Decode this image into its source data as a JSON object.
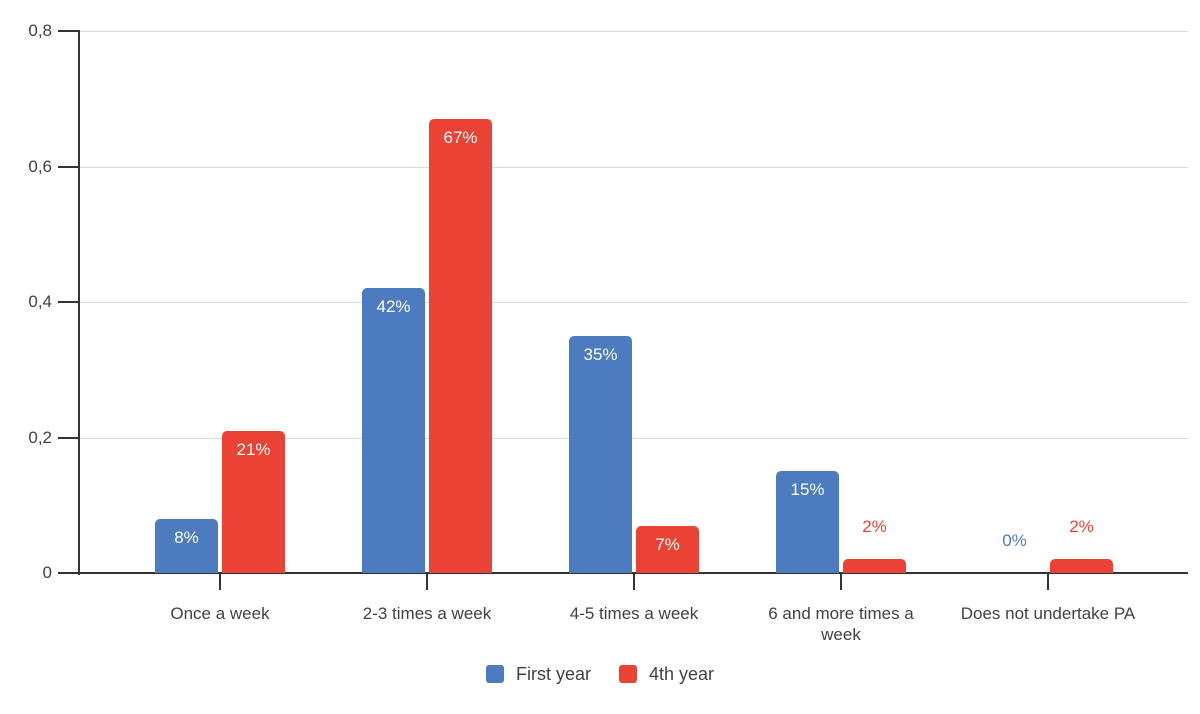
{
  "chart_data": {
    "type": "bar",
    "title": "",
    "xlabel": "",
    "ylabel": "",
    "categories": [
      "Once a week",
      "2-3 times a week",
      "4-5 times a week",
      "6 and more times a week",
      "Does not undertake PA"
    ],
    "series": [
      {
        "name": "First year",
        "color": "#4C7BC0",
        "values": [
          0.08,
          0.42,
          0.35,
          0.15,
          0
        ],
        "labels": [
          "8%",
          "42%",
          "35%",
          "15%",
          "0%"
        ]
      },
      {
        "name": "4th year",
        "color": "#EA4335",
        "values": [
          0.21,
          0.67,
          0.07,
          0.02,
          0.02
        ],
        "labels": [
          "21%",
          "67%",
          "7%",
          "2%",
          "2%"
        ]
      }
    ],
    "ylim": [
      0,
      0.8
    ],
    "yticks": {
      "values": [
        0,
        0.2,
        0.4,
        0.6,
        0.8
      ],
      "labels": [
        "0",
        "0,2",
        "0,4",
        "0,6",
        "0,8"
      ]
    },
    "grid": true,
    "legend_position": "bottom"
  },
  "colors": {
    "axis": "#333333",
    "gridline": "#dadada",
    "label_text": "#424242",
    "value_label_inside": "#ffffff",
    "background": "#ffffff"
  }
}
